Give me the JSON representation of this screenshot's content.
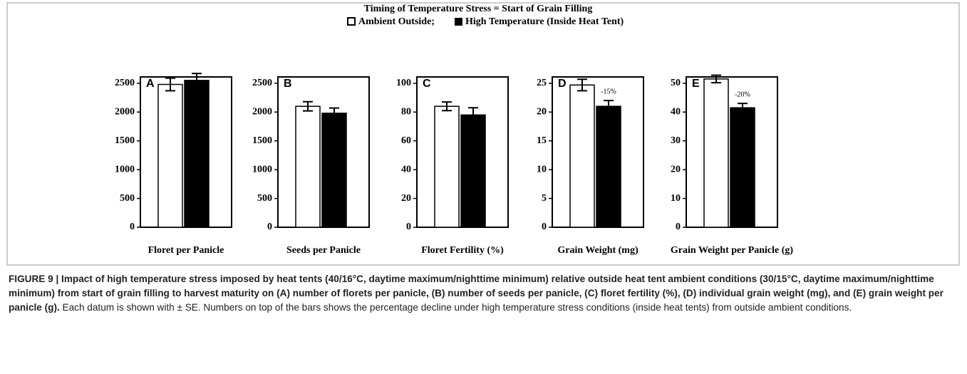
{
  "figure": {
    "title": "Timing of Temperature Stress = Start of Grain Filling",
    "caption_bold": "FIGURE 9 | Impact of high temperature stress imposed by heat tents (40/16°C, daytime maximum/nighttime minimum) relative outside heat tent ambient conditions (30/15°C, daytime maximum/nighttime minimum) from start of grain filling to harvest maturity on (A) number of florets per panicle, (B) number of seeds per panicle, (C) floret fertility (%), (D) individual grain weight (mg), and (E) grain weight per panicle (g).",
    "caption_rest": "Each datum is shown with ± SE. Numbers on top of the bars shows the percentage decline under high temperature stress conditions (inside heat tents) from outside ambient conditions."
  },
  "chart_data": [
    {
      "type": "bar",
      "panel": "A",
      "xlabel": "Floret per Panicle",
      "ylim": [
        0,
        2610
      ],
      "yticks": [
        0,
        500,
        1000,
        1500,
        2000,
        2500
      ],
      "series": [
        {
          "name": "Ambient Outside;",
          "color": "#ffffff",
          "values": [
            2480
          ],
          "errors": [
            110
          ]
        },
        {
          "name": "High Temperature (Inside Heat Tent)",
          "color": "#000000",
          "values": [
            2550
          ],
          "errors": [
            120
          ]
        }
      ]
    },
    {
      "type": "bar",
      "panel": "B",
      "xlabel": "Seeds per Panicle",
      "ylim": [
        0,
        2610
      ],
      "yticks": [
        0,
        500,
        1000,
        1500,
        2000,
        2500
      ],
      "series": [
        {
          "name": "Ambient Outside;",
          "color": "#ffffff",
          "values": [
            2100
          ],
          "errors": [
            80
          ]
        },
        {
          "name": "High Temperature (Inside Heat Tent)",
          "color": "#000000",
          "values": [
            1980
          ],
          "errors": [
            90
          ]
        }
      ]
    },
    {
      "type": "bar",
      "panel": "C",
      "xlabel": "Floret Fertility (%)",
      "ylim": [
        0,
        104.4
      ],
      "yticks": [
        0,
        20,
        40,
        60,
        80,
        100
      ],
      "series": [
        {
          "name": "Ambient Outside;",
          "color": "#ffffff",
          "values": [
            84
          ],
          "errors": [
            3
          ]
        },
        {
          "name": "High Temperature (Inside Heat Tent)",
          "color": "#000000",
          "values": [
            78
          ],
          "errors": [
            5
          ]
        }
      ]
    },
    {
      "type": "bar",
      "panel": "D",
      "xlabel": "Grain Weight (mg)",
      "ylim": [
        0,
        26.1
      ],
      "yticks": [
        0,
        5,
        10,
        15,
        20,
        25
      ],
      "annotation": "-15%",
      "series": [
        {
          "name": "Ambient Outside;",
          "color": "#ffffff",
          "values": [
            24.7
          ],
          "errors": [
            1
          ]
        },
        {
          "name": "High Temperature (Inside Heat Tent)",
          "color": "#000000",
          "values": [
            21
          ],
          "errors": [
            1
          ]
        }
      ]
    },
    {
      "type": "bar",
      "panel": "E",
      "xlabel": "Grain Weight per Panicle (g)",
      "ylim": [
        0,
        52.2
      ],
      "yticks": [
        0,
        10,
        20,
        30,
        40,
        50
      ],
      "annotation": "-20%",
      "series": [
        {
          "name": "Ambient Outside;",
          "color": "#ffffff",
          "values": [
            51.5
          ],
          "errors": [
            1.3
          ]
        },
        {
          "name": "High Temperature (Inside Heat Tent)",
          "color": "#000000",
          "values": [
            41.5
          ],
          "errors": [
            1.5
          ]
        }
      ]
    }
  ]
}
